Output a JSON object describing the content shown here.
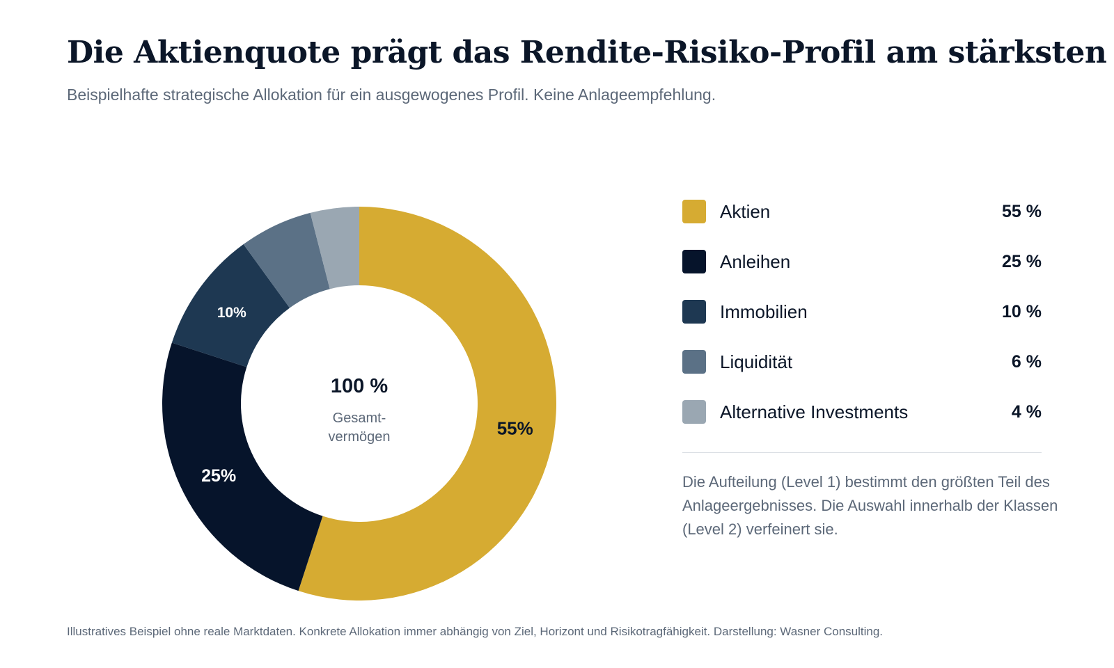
{
  "header": {
    "title": "Die Aktienquote prägt das Rendite-Risiko-Profil am stärksten",
    "subtitle": "Beispielhafte strategische Allokation für ein ausgewogenes Profil. Keine Anlageempfehlung."
  },
  "center": {
    "value": "100 %",
    "label_line1": "Gesamt-",
    "label_line2": "vermögen"
  },
  "chart_data": {
    "type": "pie",
    "variant": "donut",
    "title": "Die Aktienquote prägt das Rendite-Risiko-Profil am stärksten",
    "categories": [
      "Aktien",
      "Anleihen",
      "Immobilien",
      "Liquidität",
      "Alternative Investments"
    ],
    "values": [
      55,
      25,
      10,
      6,
      4
    ],
    "unit": "%",
    "colors": [
      "#d6ab32",
      "#06142b",
      "#1e3852",
      "#5b7186",
      "#9aa7b2"
    ],
    "slice_labels": [
      "55%",
      "25%",
      "10%",
      "",
      ""
    ],
    "legend_position": "right"
  },
  "legend": {
    "items": [
      {
        "label": "Aktien",
        "value": "55 %",
        "color": "#d6ab32"
      },
      {
        "label": "Anleihen",
        "value": "25 %",
        "color": "#06142b"
      },
      {
        "label": "Immobilien",
        "value": "10 %",
        "color": "#1e3852"
      },
      {
        "label": "Liquidität",
        "value": "6 %",
        "color": "#5b7186"
      },
      {
        "label": "Alternative Investments",
        "value": "4 %",
        "color": "#9aa7b2"
      }
    ]
  },
  "note": "Die Aufteilung (Level 1) bestimmt den größten Teil des Anlageergebnisses. Die Auswahl innerhalb der Klassen (Level 2) verfeinert sie.",
  "footnote": "Illustratives Beispiel ohne reale Marktdaten. Konkrete Allokation immer abhängig von Ziel, Horizont und Risikotragfähigkeit. Darstellung: Wasner Consulting."
}
